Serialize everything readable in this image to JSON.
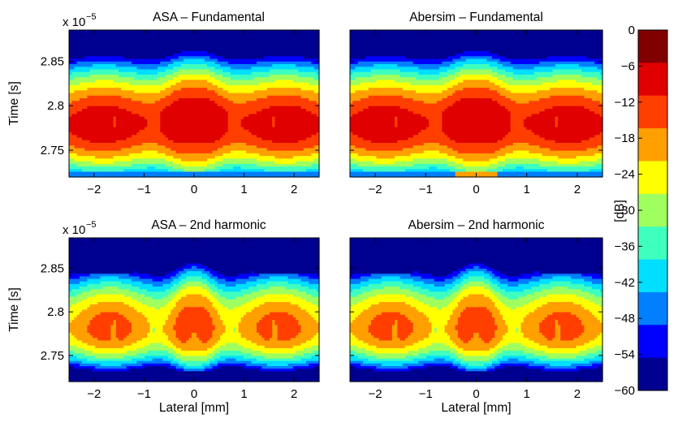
{
  "chart_data": [
    {
      "type": "heatmap",
      "title": "ASA – Fundamental",
      "xlabel": "",
      "ylabel": "Time [s]",
      "y_exponent": "x 10",
      "y_exponent_power": "−5",
      "xlim": [
        -2.5,
        2.5
      ],
      "ylim": [
        2.72,
        2.885
      ],
      "x_ticks": [
        -2,
        -1,
        0,
        1,
        2
      ],
      "x_tick_labels": [
        "−2",
        "−1",
        "0",
        "1",
        "2"
      ],
      "y_ticks": [
        2.75,
        2.8,
        2.85
      ],
      "y_tick_labels": [
        "2.75",
        "2.8",
        "2.85"
      ],
      "peak": {
        "x": 0.0,
        "y": 2.78,
        "level_db": -3
      },
      "side_lobes_x": [
        -1.6,
        -0.8,
        0.8,
        1.6
      ],
      "mode": "fundamental",
      "variant": "asa"
    },
    {
      "type": "heatmap",
      "title": "Abersim – Fundamental",
      "xlabel": "",
      "ylabel": "",
      "xlim": [
        -2.5,
        2.5
      ],
      "ylim": [
        2.72,
        2.885
      ],
      "x_ticks": [
        -2,
        -1,
        0,
        1,
        2
      ],
      "x_tick_labels": [
        "−2",
        "−1",
        "0",
        "1",
        "2"
      ],
      "y_ticks": [
        2.75,
        2.8,
        2.85
      ],
      "y_tick_labels": [],
      "peak": {
        "x": 0.0,
        "y": 2.78,
        "level_db": -3
      },
      "side_lobes_x": [
        -1.6,
        -0.8,
        0.8,
        1.6
      ],
      "mode": "fundamental",
      "variant": "abersim"
    },
    {
      "type": "heatmap",
      "title": "ASA – 2nd harmonic",
      "xlabel": "Lateral [mm]",
      "ylabel": "Time [s]",
      "y_exponent": "x 10",
      "y_exponent_power": "−5",
      "xlim": [
        -2.5,
        2.5
      ],
      "ylim": [
        2.72,
        2.885
      ],
      "x_ticks": [
        -2,
        -1,
        0,
        1,
        2
      ],
      "x_tick_labels": [
        "−2",
        "−1",
        "0",
        "1",
        "2"
      ],
      "y_ticks": [
        2.75,
        2.8,
        2.85
      ],
      "y_tick_labels": [
        "2.75",
        "2.8",
        "2.85"
      ],
      "peak": {
        "x": 0.0,
        "y": 2.78,
        "level_db": -3
      },
      "side_lobes_x": [
        -1.6,
        -0.8,
        0.8,
        1.6
      ],
      "mode": "harmonic",
      "variant": "asa"
    },
    {
      "type": "heatmap",
      "title": "Abersim – 2nd harmonic",
      "xlabel": "Lateral [mm]",
      "ylabel": "",
      "xlim": [
        -2.5,
        2.5
      ],
      "ylim": [
        2.72,
        2.885
      ],
      "x_ticks": [
        -2,
        -1,
        0,
        1,
        2
      ],
      "x_tick_labels": [
        "−2",
        "−1",
        "0",
        "1",
        "2"
      ],
      "y_ticks": [
        2.75,
        2.8,
        2.85
      ],
      "y_tick_labels": [],
      "peak": {
        "x": 0.0,
        "y": 2.78,
        "level_db": -3
      },
      "side_lobes_x": [
        -1.6,
        -0.8,
        0.8,
        1.6
      ],
      "mode": "harmonic",
      "variant": "abersim"
    }
  ],
  "colorbar": {
    "label": "[dB]",
    "range": [
      -60,
      0
    ],
    "ticks": [
      0,
      -6,
      -12,
      -18,
      -24,
      -30,
      -36,
      -42,
      -48,
      -54,
      -60
    ],
    "tick_labels": [
      "0",
      "−6",
      "−12",
      "−18",
      "−24",
      "−30",
      "−36",
      "−42",
      "−48",
      "−54",
      "−60"
    ],
    "colors": [
      "#800000",
      "#E00000",
      "#FF3F00",
      "#FF9F00",
      "#FFFF00",
      "#9FFF5F",
      "#3FFFBF",
      "#00DFFF",
      "#007FFF",
      "#0000FF",
      "#000090"
    ]
  }
}
